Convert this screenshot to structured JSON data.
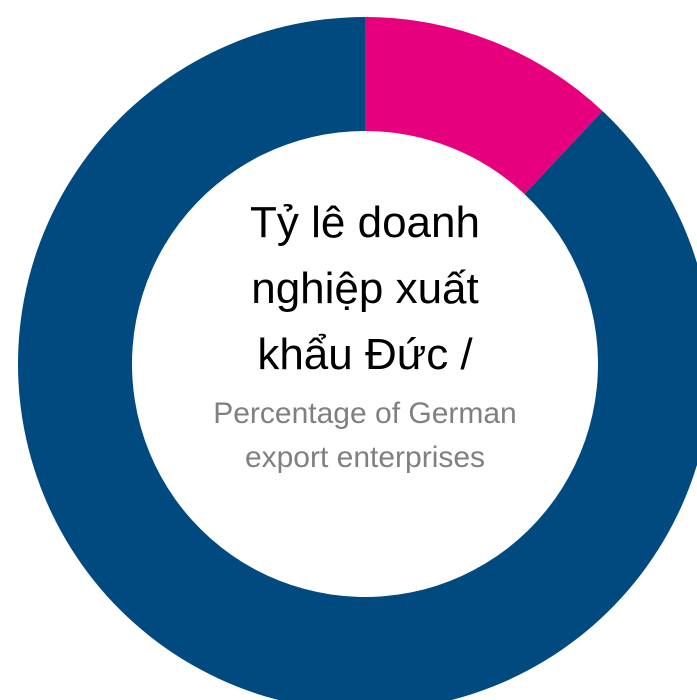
{
  "chart_data": {
    "type": "donut",
    "values": [
      12,
      88
    ],
    "colors": [
      "#e6007e",
      "#004a80"
    ],
    "center_label": "Tỷ lê doanh nghiệp xuất khẩu Đức /",
    "center_sublabel": "Percentage of German export enterprises"
  }
}
